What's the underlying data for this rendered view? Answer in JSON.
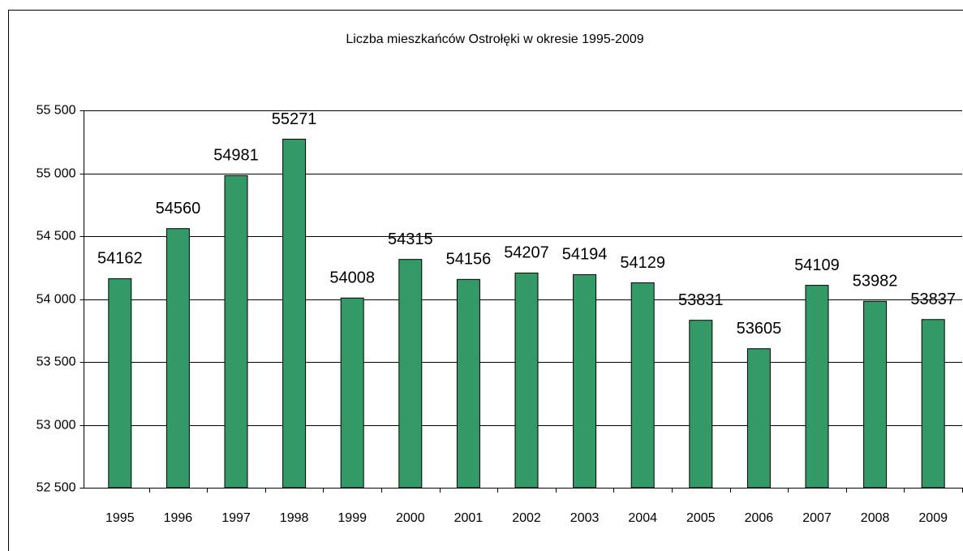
{
  "chart_data": {
    "type": "bar",
    "title": "Liczba mieszkańców Ostrołęki w okresie 1995-2009",
    "categories": [
      "1995",
      "1996",
      "1997",
      "1998",
      "1999",
      "2000",
      "2001",
      "2002",
      "2003",
      "2004",
      "2005",
      "2006",
      "2007",
      "2008",
      "2009"
    ],
    "values": [
      54162,
      54560,
      54981,
      55271,
      54008,
      54315,
      54156,
      54207,
      54194,
      54129,
      53831,
      53605,
      54109,
      53982,
      53837
    ],
    "color": "#339966",
    "ylim": [
      52500,
      55500
    ],
    "yticks": [
      {
        "value": 52500,
        "label": "52 500"
      },
      {
        "value": 53000,
        "label": "53 000"
      },
      {
        "value": 53500,
        "label": "53 500"
      },
      {
        "value": 54000,
        "label": "54 000"
      },
      {
        "value": 54500,
        "label": "54 500"
      },
      {
        "value": 55000,
        "label": "55 000"
      },
      {
        "value": 55500,
        "label": "55 500"
      }
    ],
    "grid": true
  }
}
